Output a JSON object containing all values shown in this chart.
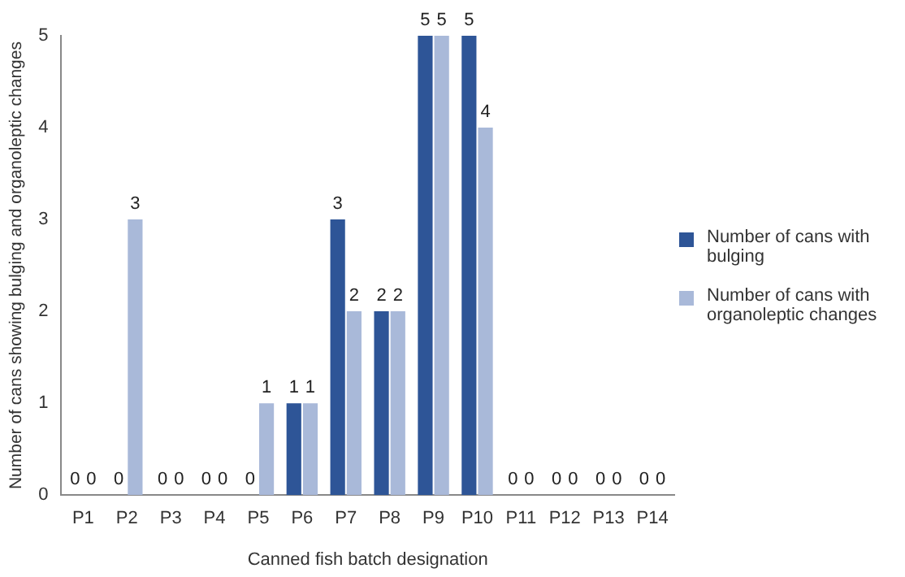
{
  "chart_data": {
    "type": "bar",
    "xlabel": "Canned fish batch designation",
    "ylabel": "Number of cans showing bulging and organoleptic changes",
    "categories": [
      "P1",
      "P2",
      "P3",
      "P4",
      "P5",
      "P6",
      "P7",
      "P8",
      "P9",
      "P10",
      "P11",
      "P12",
      "P13",
      "P14"
    ],
    "series": [
      {
        "name": "Number of cans with bulging",
        "color": "#2e5597",
        "values": [
          0,
          0,
          0,
          0,
          0,
          1,
          3,
          2,
          5,
          5,
          0,
          0,
          0,
          0
        ]
      },
      {
        "name": "Number of cans with organoleptic changes",
        "color": "#a9b9d9",
        "values": [
          0,
          3,
          0,
          0,
          1,
          1,
          2,
          2,
          5,
          4,
          0,
          0,
          0,
          0
        ]
      }
    ],
    "ylim": [
      0,
      5
    ],
    "yticks": [
      0,
      1,
      2,
      3,
      4,
      5
    ],
    "grid": false,
    "legend": "right",
    "data_labels": true
  }
}
